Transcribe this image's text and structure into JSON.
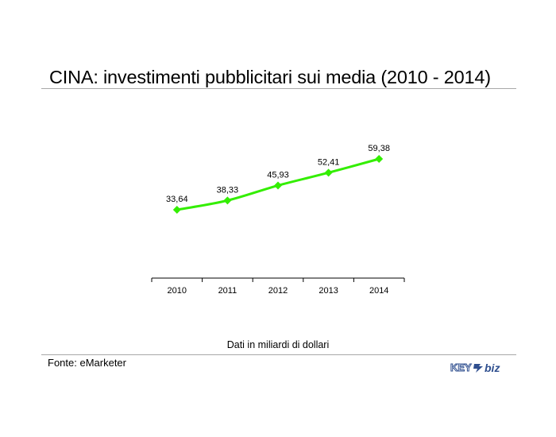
{
  "header": {
    "title": "CINA: investimenti pubblicitari sui media (2010 - 2014)"
  },
  "chart_data": {
    "type": "line",
    "title": "CINA: investimenti pubblicitari sui media (2010 - 2014)",
    "xlabel": "",
    "ylabel": "",
    "categories": [
      "2010",
      "2011",
      "2012",
      "2013",
      "2014"
    ],
    "series": [
      {
        "values": [
          33.64,
          38.33,
          45.93,
          52.41,
          59.38
        ],
        "value_labels": [
          "33,64",
          "38,33",
          "45,93",
          "52,41",
          "59,38"
        ],
        "color": "#33ee00"
      }
    ],
    "grid": false,
    "legend": "none"
  },
  "footer": {
    "note": "Dati in miliardi di dollari",
    "source": "Fonte: eMarketer",
    "logo_text": "KEY4biz"
  },
  "colors": {
    "line": "#33ee00",
    "rule": "#a8a8a8",
    "logo_blue": "#2f4f8f"
  }
}
